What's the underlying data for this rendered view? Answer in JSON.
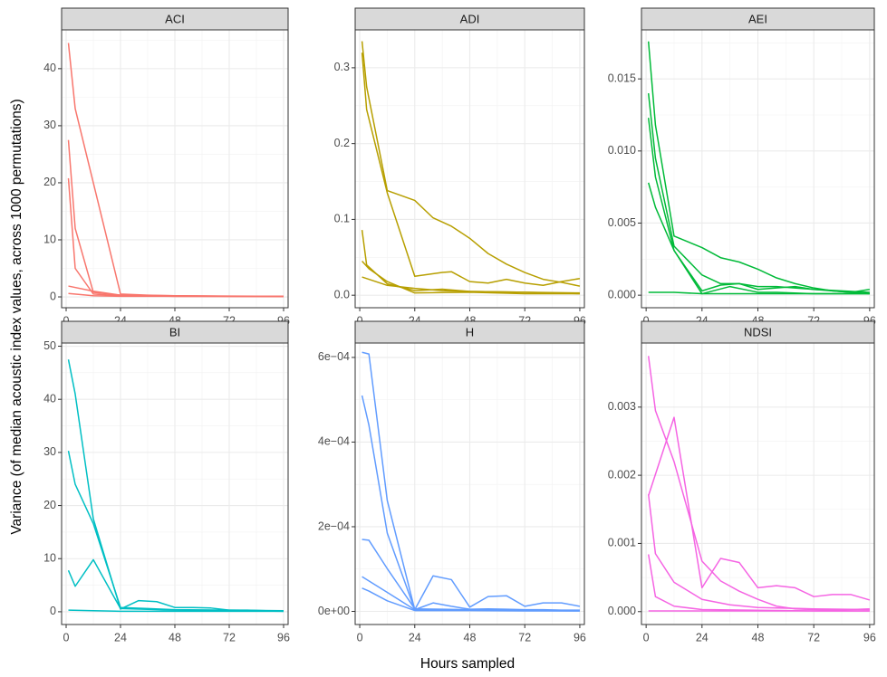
{
  "chart_data": {
    "type": "line",
    "xlabel": "Hours sampled",
    "ylabel": "Variance (of median acoustic index values, across 1000 permutations)",
    "xlim": [
      -2,
      98
    ],
    "x_ticks": [
      0,
      24,
      48,
      72,
      96
    ],
    "x_tick_labels": [
      "0",
      "24",
      "48",
      "72",
      "96"
    ],
    "panels": [
      {
        "title": "ACI",
        "color": "#F8766D",
        "ylim": [
          -1.9,
          46.8
        ],
        "y_ticks": [
          0,
          10,
          20,
          30,
          40
        ],
        "y_tick_labels": [
          "0",
          "10",
          "20",
          "30",
          "40"
        ],
        "series": [
          {
            "x": [
              1,
              4,
              24,
              36,
              48,
              72,
              96
            ],
            "y": [
              44.5,
              33,
              0.5,
              0.3,
              0.2,
              0.1,
              0.1
            ]
          },
          {
            "x": [
              1,
              4,
              12,
              24,
              48,
              96
            ],
            "y": [
              27.5,
              12,
              0.8,
              0.3,
              0.2,
              0.1
            ]
          },
          {
            "x": [
              1,
              4,
              12,
              24,
              48,
              96
            ],
            "y": [
              20.8,
              5,
              0.5,
              0.2,
              0.1,
              0.1
            ]
          },
          {
            "x": [
              1,
              12,
              24,
              48,
              96
            ],
            "y": [
              1.9,
              1.0,
              0.3,
              0.1,
              0.1
            ]
          },
          {
            "x": [
              1,
              12,
              24,
              48,
              96
            ],
            "y": [
              0.6,
              0.2,
              0.1,
              0.1,
              0.05
            ]
          }
        ]
      },
      {
        "title": "ADI",
        "color": "#B79F00",
        "ylim": [
          -0.0165,
          0.35
        ],
        "y_ticks": [
          0,
          0.1,
          0.2,
          0.3
        ],
        "y_tick_labels": [
          "0.0",
          "0.1",
          "0.2",
          "0.3"
        ],
        "series": [
          {
            "x": [
              1,
              3,
              12,
              24,
              32,
              40,
              48,
              56,
              64,
              72,
              80,
              88,
              96
            ],
            "y": [
              0.335,
              0.275,
              0.138,
              0.125,
              0.102,
              0.091,
              0.075,
              0.055,
              0.041,
              0.03,
              0.021,
              0.017,
              0.012
            ]
          },
          {
            "x": [
              1,
              3,
              12,
              24,
              36,
              40,
              48,
              56,
              64,
              72,
              80,
              88,
              96
            ],
            "y": [
              0.32,
              0.245,
              0.135,
              0.025,
              0.03,
              0.031,
              0.018,
              0.016,
              0.021,
              0.016,
              0.013,
              0.018,
              0.022
            ]
          },
          {
            "x": [
              1,
              3,
              12,
              24,
              36,
              48,
              72,
              96
            ],
            "y": [
              0.086,
              0.04,
              0.015,
              0.006,
              0.008,
              0.005,
              0.004,
              0.003
            ]
          },
          {
            "x": [
              1,
              4,
              12,
              24,
              48,
              72,
              96
            ],
            "y": [
              0.045,
              0.035,
              0.018,
              0.003,
              0.004,
              0.002,
              0.002
            ]
          },
          {
            "x": [
              1,
              12,
              24,
              36,
              48,
              72,
              96
            ],
            "y": [
              0.024,
              0.013,
              0.009,
              0.006,
              0.005,
              0.004,
              0.002
            ]
          }
        ]
      },
      {
        "title": "AEI",
        "color": "#00BA38",
        "ylim": [
          -0.00087,
          0.0184
        ],
        "y_ticks": [
          0,
          0.005,
          0.01,
          0.015
        ],
        "y_tick_labels": [
          "0.000",
          "0.005",
          "0.010",
          "0.015"
        ],
        "series": [
          {
            "x": [
              1,
              4,
              12,
              24,
              32,
              40,
              48,
              56,
              64,
              72,
              80,
              88,
              96
            ],
            "y": [
              0.0176,
              0.0118,
              0.0041,
              0.0033,
              0.0026,
              0.0023,
              0.0018,
              0.0012,
              0.0008,
              0.0005,
              0.0003,
              0.0002,
              0.0004
            ]
          },
          {
            "x": [
              1,
              4,
              12,
              24,
              32,
              40,
              48,
              56,
              64,
              72,
              80,
              88,
              96
            ],
            "y": [
              0.014,
              0.0095,
              0.0034,
              0.0014,
              0.0008,
              0.0008,
              0.0004,
              0.0005,
              0.0006,
              0.0004,
              0.0003,
              0.0002,
              0.0001
            ]
          },
          {
            "x": [
              1,
              4,
              12,
              24,
              32,
              40,
              48,
              56,
              72,
              96
            ],
            "y": [
              0.0123,
              0.0082,
              0.0031,
              0.0003,
              0.0007,
              0.0008,
              0.0006,
              0.0006,
              0.0004,
              0.0002
            ]
          },
          {
            "x": [
              1,
              4,
              12,
              24,
              36,
              48,
              56,
              72,
              96
            ],
            "y": [
              0.0078,
              0.0061,
              0.0031,
              0.0001,
              0.0006,
              0.0002,
              0.0002,
              0.0001,
              0.0001
            ]
          },
          {
            "x": [
              1,
              12,
              24,
              36,
              48,
              72,
              96
            ],
            "y": [
              0.0002,
              0.0002,
              0.0001,
              0.0001,
              0.0001,
              0.0001,
              0.0001
            ]
          }
        ]
      },
      {
        "title": "BI",
        "color": "#00BFC4",
        "ylim": [
          -2.4,
          50.6
        ],
        "y_ticks": [
          0,
          10,
          20,
          30,
          40,
          50
        ],
        "y_tick_labels": [
          "0",
          "10",
          "20",
          "30",
          "40",
          "50"
        ],
        "series": [
          {
            "x": [
              1,
              4,
              12,
              24,
              32,
              40,
              48,
              56,
              64,
              72,
              80,
              88,
              96
            ],
            "y": [
              47.5,
              41,
              17.5,
              0.5,
              2.1,
              1.9,
              0.8,
              0.8,
              0.7,
              0.3,
              0.3,
              0.2,
              0.1
            ]
          },
          {
            "x": [
              1,
              4,
              12,
              24,
              36,
              48,
              72,
              96
            ],
            "y": [
              30.3,
              24,
              16.6,
              0.8,
              0.6,
              0.4,
              0.3,
              0.2
            ]
          },
          {
            "x": [
              1,
              4,
              12,
              24,
              48,
              72,
              96
            ],
            "y": [
              7.8,
              4.8,
              9.8,
              0.6,
              0.3,
              0.2,
              0.1
            ]
          },
          {
            "x": [
              1,
              12,
              24,
              48,
              96
            ],
            "y": [
              0.3,
              0.2,
              0.1,
              0.1,
              0.1
            ]
          }
        ]
      },
      {
        "title": "H",
        "color": "#619CFF",
        "ylim": [
          -3.1e-05,
          0.000634
        ],
        "y_ticks": [
          0,
          0.0002,
          0.0004,
          0.0006
        ],
        "y_tick_labels": [
          "0e+00",
          "2e−04",
          "4e−04",
          "6e−04"
        ],
        "series": [
          {
            "x": [
              1,
              4,
              12,
              24,
              32,
              40,
              48,
              56,
              64,
              72,
              80,
              88,
              96
            ],
            "y": [
              0.000612,
              0.000608,
              0.000262,
              4e-06,
              8.4e-05,
              7.5e-05,
              1e-05,
              3.5e-05,
              3.7e-05,
              1.2e-05,
              2e-05,
              2e-05,
              1.2e-05
            ]
          },
          {
            "x": [
              1,
              4,
              12,
              24,
              32,
              40,
              48,
              56,
              64,
              72,
              80,
              88,
              96
            ],
            "y": [
              0.00051,
              0.00044,
              0.000185,
              4e-06,
              2e-05,
              1.2e-05,
              5e-06,
              6e-06,
              5e-06,
              4e-06,
              4e-06,
              3e-06,
              3e-06
            ]
          },
          {
            "x": [
              1,
              4,
              12,
              24,
              36,
              48,
              72,
              96
            ],
            "y": [
              0.00017,
              0.000168,
              0.000101,
              6e-06,
              5e-06,
              4e-06,
              3e-06,
              2e-06
            ]
          },
          {
            "x": [
              1,
              4,
              12,
              24,
              48,
              72,
              96
            ],
            "y": [
              8.2e-05,
              7.2e-05,
              4.5e-05,
              4e-06,
              3e-06,
              2e-06,
              1e-06
            ]
          },
          {
            "x": [
              1,
              4,
              12,
              24,
              48,
              72,
              96
            ],
            "y": [
              5.5e-05,
              4.8e-05,
              2.5e-05,
              2e-06,
              2e-06,
              1e-06,
              1e-06
            ]
          }
        ]
      },
      {
        "title": "NDSI",
        "color": "#F564E3",
        "ylim": [
          -0.000189,
          0.00394
        ],
        "y_ticks": [
          0,
          0.001,
          0.002,
          0.003
        ],
        "y_tick_labels": [
          "0.000",
          "0.001",
          "0.002",
          "0.003"
        ],
        "series": [
          {
            "x": [
              1,
              4,
              12,
              24,
              32,
              40,
              48,
              56,
              64,
              72,
              80,
              88,
              96
            ],
            "y": [
              0.00375,
              0.00295,
              0.0022,
              0.00074,
              0.00045,
              0.0003,
              0.00018,
              8e-05,
              4e-05,
              3e-05,
              2e-05,
              3e-05,
              4e-05
            ]
          },
          {
            "x": [
              1,
              12,
              24,
              32,
              40,
              48,
              56,
              64,
              72,
              80,
              88,
              96
            ],
            "y": [
              0.0017,
              0.00285,
              0.00035,
              0.00078,
              0.00072,
              0.00035,
              0.00038,
              0.00035,
              0.00022,
              0.00025,
              0.00025,
              0.00017
            ]
          },
          {
            "x": [
              1,
              4,
              12,
              24,
              36,
              48,
              72,
              96
            ],
            "y": [
              0.00172,
              0.00085,
              0.00043,
              0.00018,
              0.0001,
              6e-05,
              4e-05,
              3e-05
            ]
          },
          {
            "x": [
              1,
              4,
              12,
              24,
              48,
              72,
              96
            ],
            "y": [
              0.00084,
              0.00022,
              8e-05,
              3e-05,
              2e-05,
              1e-05,
              1e-05
            ]
          },
          {
            "x": [
              1,
              12,
              24,
              48,
              96
            ],
            "y": [
              1e-05,
              1e-05,
              1e-05,
              1e-05,
              1e-05
            ]
          }
        ]
      }
    ]
  }
}
